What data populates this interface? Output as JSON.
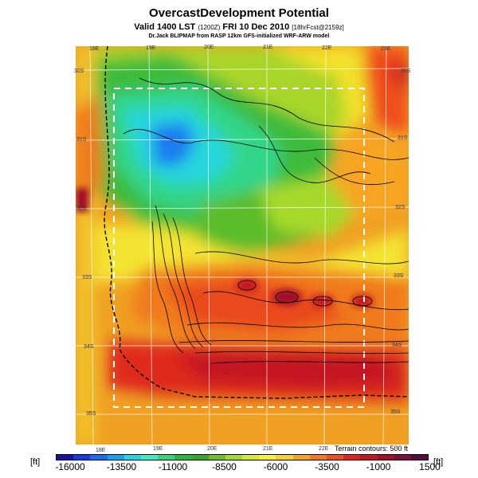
{
  "title": "OvercastDevelopment Potential",
  "subtitle_main": "Valid 1400 LST",
  "subtitle_small1": "(1200Z)",
  "subtitle_date": "FRI 10 Dec 2010",
  "subtitle_small2": "[18hrFcst@2159z]",
  "credit": "Dr.Jack BLIPMAP from RASP 12km GFS-initialized WRF-ARW model",
  "top_lon_labels": [
    "18E",
    "19E",
    "20E",
    "21E",
    "22E",
    "23E"
  ],
  "bottom_lon_labels": [
    "18E",
    "19E",
    "20E",
    "21E",
    "22E"
  ],
  "lat_labels": [
    "30S",
    "31S",
    "32S",
    "33S",
    "34S",
    "35S"
  ],
  "terrain_note": "Terrain contours: 500 ft",
  "unit_left": "[ft]",
  "unit_right": "[ft]",
  "colorbar": {
    "ticks": [
      "-16000",
      "-13500",
      "-11000",
      "-8500",
      "-6000",
      "-3500",
      "-1000",
      "1500"
    ],
    "colors": [
      "#1a0fa0",
      "#1638e6",
      "#1a6cf2",
      "#15a3f2",
      "#22d6ea",
      "#3aeec3",
      "#37d27c",
      "#2ab73a",
      "#33a62c",
      "#6cbf29",
      "#a7d92a",
      "#d8ea2c",
      "#f4f232",
      "#f7d129",
      "#f7a420",
      "#f37a1f",
      "#ef4e1e",
      "#e3221f",
      "#c31722",
      "#a1112c",
      "#7b1040",
      "#570a3f"
    ]
  }
}
